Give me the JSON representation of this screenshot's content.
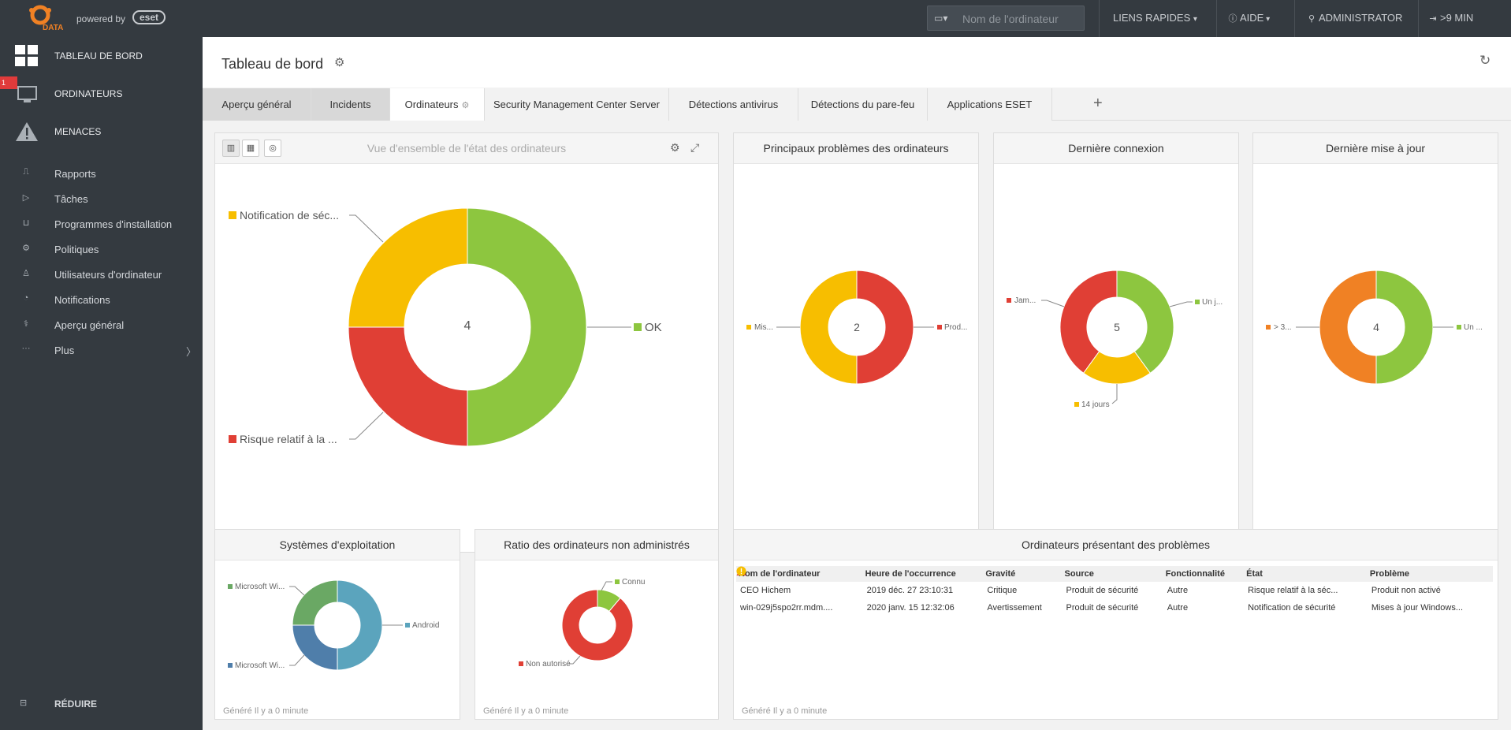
{
  "topbar": {
    "logo_text": "DATA",
    "powered_by": "powered by",
    "eset_logo": "eset",
    "search_placeholder": "Nom de l'ordinateur",
    "quick_links": "LIENS RAPIDES",
    "help": "AIDE",
    "user": "ADMINISTRATOR",
    "session": ">9 MIN"
  },
  "sidebar": {
    "main": [
      {
        "label": "TABLEAU DE BORD",
        "icon": "dashboard-icon"
      },
      {
        "label": "ORDINATEURS",
        "icon": "computers-icon",
        "badge": "1"
      },
      {
        "label": "MENACES",
        "icon": "threat-icon"
      }
    ],
    "items": [
      {
        "label": "Rapports",
        "icon": "reports-icon"
      },
      {
        "label": "Tâches",
        "icon": "tasks-icon"
      },
      {
        "label": "Programmes d'installation",
        "icon": "installer-icon"
      },
      {
        "label": "Politiques",
        "icon": "policies-icon"
      },
      {
        "label": "Utilisateurs d'ordinateur",
        "icon": "user-icon"
      },
      {
        "label": "Notifications",
        "icon": "bell-icon"
      },
      {
        "label": "Aperçu général",
        "icon": "overview-icon"
      },
      {
        "label": "Plus",
        "icon": "more-icon"
      }
    ],
    "reduce": "RÉDUIRE"
  },
  "page": {
    "title": "Tableau de bord",
    "tabs": [
      "Aperçu général",
      "Incidents",
      "Ordinateurs",
      "Security Management Center Server",
      "Détections antivirus",
      "Détections du pare-feu",
      "Applications ESET"
    ],
    "active_tab": "Ordinateurs"
  },
  "generated": "Généré Il y a 0 minute",
  "colors": {
    "green": "#8dc63f",
    "yellow": "#f7be00",
    "red": "#e03f35",
    "orange": "#f08124",
    "teal": "#5ba4bd",
    "blue": "#4f7eaa",
    "lightgreen": "#6aa864"
  },
  "widgets": {
    "overview": {
      "title": "Vue d'ensemble de l'état des ordinateurs",
      "center": "4",
      "labels": {
        "ok": "OK",
        "notif": "Notification de séc...",
        "risk": "Risque relatif à la ..."
      }
    },
    "problems": {
      "title": "Principaux problèmes des ordinateurs",
      "center": "2",
      "labels": {
        "left": "Mis...",
        "right": "Prod..."
      }
    },
    "lastconn": {
      "title": "Dernière connexion",
      "center": "5",
      "labels": {
        "left": "Jam...",
        "right": "Un j...",
        "bottom": "14 jours"
      }
    },
    "lastupdate": {
      "title": "Dernière mise à jour",
      "center": "4",
      "labels": {
        "left": "> 3...",
        "right": "Un ..."
      }
    },
    "os": {
      "title": "Systèmes d'exploitation",
      "labels": {
        "top": "Microsoft Wi...",
        "bottom": "Microsoft Wi...",
        "right": "Android"
      }
    },
    "ratio": {
      "title": "Ratio des ordinateurs non administrés",
      "labels": {
        "top": "Connu",
        "bottom": "Non autorisé"
      }
    },
    "issues": {
      "title": "Ordinateurs présentant des problèmes",
      "columns": [
        "Nom de l'ordinateur",
        "Heure de l'occurrence",
        "Gravité",
        "Source",
        "Fonctionnalité",
        "État",
        "Problème"
      ],
      "rows": [
        {
          "name": "CEO Hichem",
          "time": "2019 déc. 27 23:10:31",
          "severity": "Critique",
          "sev_icon": "critical-icon",
          "source": "Produit de sécurité",
          "feature": "Autre",
          "state": "Risque relatif à la séc...",
          "problem": "Produit non activé"
        },
        {
          "name": "win-029j5spo2rr.mdm....",
          "time": "2020 janv. 15 12:32:06",
          "severity": "Avertissement",
          "sev_icon": "warning-icon",
          "source": "Produit de sécurité",
          "feature": "Autre",
          "state": "Notification de sécurité",
          "problem": "Mises à jour Windows..."
        }
      ]
    }
  },
  "chart_data": [
    {
      "type": "pie",
      "title": "Vue d'ensemble de l'état des ordinateurs",
      "center_label": "4",
      "slices": [
        {
          "label": "OK",
          "value": 2
        },
        {
          "label": "Risque relatif à la ...",
          "value": 1
        },
        {
          "label": "Notification de séc...",
          "value": 1
        }
      ]
    },
    {
      "type": "pie",
      "title": "Principaux problèmes des ordinateurs",
      "center_label": "2",
      "slices": [
        {
          "label": "Prod...",
          "value": 1
        },
        {
          "label": "Mis...",
          "value": 1
        }
      ]
    },
    {
      "type": "pie",
      "title": "Dernière connexion",
      "center_label": "5",
      "slices": [
        {
          "label": "Un j...",
          "value": 2
        },
        {
          "label": "14 jours",
          "value": 1
        },
        {
          "label": "Jam...",
          "value": 2
        }
      ]
    },
    {
      "type": "pie",
      "title": "Dernière mise à jour",
      "center_label": "4",
      "slices": [
        {
          "label": "Un ...",
          "value": 2
        },
        {
          "label": "> 3...",
          "value": 2
        }
      ]
    },
    {
      "type": "pie",
      "title": "Systèmes d'exploitation",
      "slices": [
        {
          "label": "Android",
          "value": 2
        },
        {
          "label": "Microsoft Wi...",
          "value": 1
        },
        {
          "label": "Microsoft Wi...",
          "value": 1
        }
      ]
    },
    {
      "type": "pie",
      "title": "Ratio des ordinateurs non administrés",
      "slices": [
        {
          "label": "Connu",
          "value": 1
        },
        {
          "label": "Non autorisé",
          "value": 8
        }
      ]
    }
  ]
}
